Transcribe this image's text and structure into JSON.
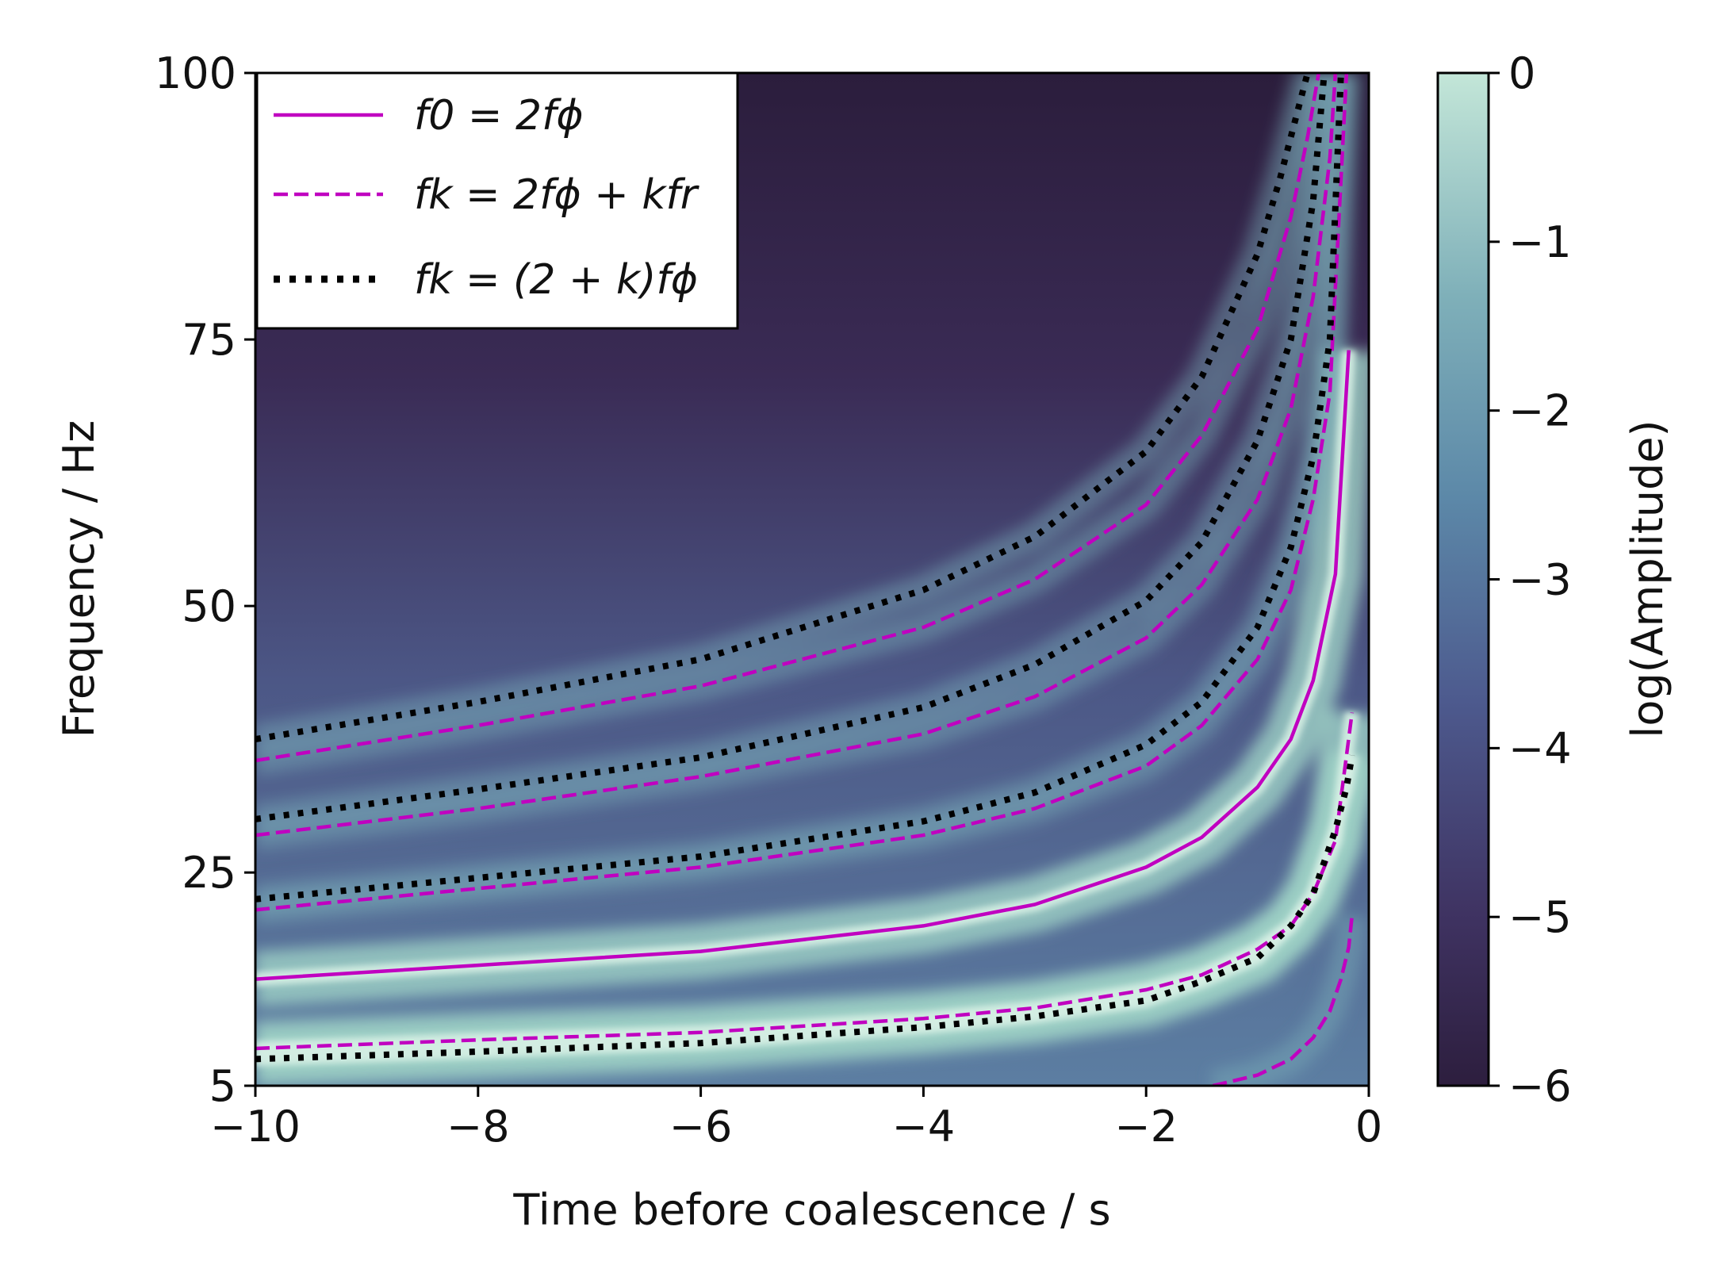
{
  "chart_data": {
    "type": "heatmap",
    "title": "",
    "xlabel": "Time before coalescence / s",
    "ylabel": "Frequency / Hz",
    "xlim": [
      -10,
      0
    ],
    "ylim": [
      5,
      100
    ],
    "x_ticks": [
      -10,
      -8,
      -6,
      -4,
      -2,
      0
    ],
    "x_tick_labels": [
      "−10",
      "−8",
      "−6",
      "−4",
      "−2",
      "0"
    ],
    "y_ticks": [
      5,
      25,
      50,
      75,
      100
    ],
    "y_tick_labels": [
      "5",
      "25",
      "50",
      "75",
      "100"
    ],
    "colorbar": {
      "label": "log(Amplitude)",
      "range": [
        -6,
        0
      ],
      "ticks": [
        0,
        -1,
        -2,
        -3,
        -4,
        -5,
        -6
      ],
      "tick_labels": [
        "0",
        "−1",
        "−2",
        "−3",
        "−4",
        "−5",
        "−6"
      ],
      "colormap": [
        "#2d1e3e",
        "#3f3362",
        "#4d5a8e",
        "#5c88a8",
        "#7fb0b9",
        "#c3e6d8"
      ]
    },
    "legend": {
      "placement": "top-left",
      "entries": [
        {
          "label": "f0 = 2fϕ",
          "style": "solid",
          "color": "#c000c0"
        },
        {
          "label": "fk = 2fϕ + kfr",
          "style": "dashed",
          "color": "#c000c0"
        },
        {
          "label": "fk = (2 + k)fϕ",
          "style": "dotted",
          "color": "#000000"
        }
      ]
    },
    "series": [
      {
        "style": "solid",
        "color": "#c000c0",
        "k": 0,
        "x": [
          -10,
          -8,
          -6,
          -4,
          -3,
          -2,
          -1.5,
          -1,
          -0.7,
          -0.5,
          -0.3,
          -0.18
        ],
        "y": [
          15.0,
          16.3,
          17.6,
          20.0,
          22.0,
          25.5,
          28.3,
          33.0,
          37.5,
          43.0,
          53.0,
          74.0
        ]
      },
      {
        "style": "dashed",
        "color": "#c000c0",
        "k": -1,
        "x": [
          -10,
          -8,
          -6,
          -4,
          -3,
          -2,
          -1.5,
          -1,
          -0.7,
          -0.5,
          -0.3,
          -0.15
        ],
        "y": [
          8.5,
          9.3,
          10.0,
          11.3,
          12.3,
          14.0,
          15.4,
          17.8,
          20.0,
          23.0,
          28.0,
          40.0
        ]
      },
      {
        "style": "dashed",
        "color": "#c000c0",
        "k": -2,
        "x": [
          -1.4,
          -1.0,
          -0.7,
          -0.5,
          -0.35,
          -0.25,
          -0.18,
          -0.15
        ],
        "y": [
          5.0,
          6.0,
          7.5,
          9.5,
          12.0,
          15.0,
          18.0,
          21.0
        ]
      },
      {
        "style": "dashed",
        "color": "#c000c0",
        "k": 1,
        "x": [
          -10,
          -8,
          -6,
          -4,
          -3,
          -2,
          -1.5,
          -1,
          -0.7,
          -0.5,
          -0.35,
          -0.2
        ],
        "y": [
          21.5,
          23.5,
          25.5,
          28.5,
          31.0,
          35.0,
          38.8,
          45.0,
          51.5,
          60.0,
          70.0,
          100.0
        ]
      },
      {
        "style": "dashed",
        "color": "#c000c0",
        "k": 2,
        "x": [
          -10,
          -8,
          -6,
          -4,
          -3,
          -2,
          -1.5,
          -1,
          -0.7,
          -0.5,
          -0.35,
          -0.3
        ],
        "y": [
          28.5,
          31.0,
          34.0,
          38.0,
          41.5,
          47.0,
          52.0,
          60.0,
          68.5,
          79.0,
          92.0,
          100.0
        ]
      },
      {
        "style": "dashed",
        "color": "#c000c0",
        "k": 3,
        "x": [
          -10,
          -8,
          -6,
          -4,
          -3,
          -2,
          -1.5,
          -1,
          -0.7,
          -0.55,
          -0.45
        ],
        "y": [
          35.5,
          38.8,
          42.5,
          48.0,
          52.5,
          59.5,
          66.0,
          76.0,
          86.5,
          94.0,
          100.0
        ]
      },
      {
        "style": "dotted",
        "color": "#000000",
        "k": -1,
        "x": [
          -10,
          -8,
          -6,
          -4,
          -3,
          -2,
          -1.5,
          -1,
          -0.7,
          -0.5,
          -0.3,
          -0.2,
          -0.15
        ],
        "y": [
          7.5,
          8.2,
          9.0,
          10.5,
          11.5,
          13.0,
          14.8,
          17.0,
          20.0,
          23.0,
          29.0,
          33.0,
          36.0
        ]
      },
      {
        "style": "dotted",
        "color": "#000000",
        "k": 1,
        "x": [
          -10,
          -8,
          -6,
          -4,
          -3,
          -2,
          -1.5,
          -1,
          -0.7,
          -0.5,
          -0.35,
          -0.25
        ],
        "y": [
          22.5,
          24.5,
          26.5,
          29.8,
          32.5,
          37.0,
          41.0,
          48.0,
          55.5,
          64.0,
          75.0,
          100.0
        ]
      },
      {
        "style": "dotted",
        "color": "#000000",
        "k": 2,
        "x": [
          -10,
          -8,
          -6,
          -4,
          -3,
          -2,
          -1.5,
          -1,
          -0.7,
          -0.5,
          -0.4
        ],
        "y": [
          30.0,
          32.8,
          35.8,
          40.5,
          44.5,
          50.5,
          56.0,
          65.5,
          75.0,
          88.0,
          100.0
        ]
      },
      {
        "style": "dotted",
        "color": "#000000",
        "k": 3,
        "x": [
          -10,
          -8,
          -6,
          -4,
          -3,
          -2,
          -1.5,
          -1,
          -0.8,
          -0.65,
          -0.55
        ],
        "y": [
          37.5,
          41.0,
          45.0,
          51.5,
          56.5,
          64.5,
          71.5,
          83.0,
          90.0,
          96.0,
          100.0
        ]
      }
    ]
  }
}
